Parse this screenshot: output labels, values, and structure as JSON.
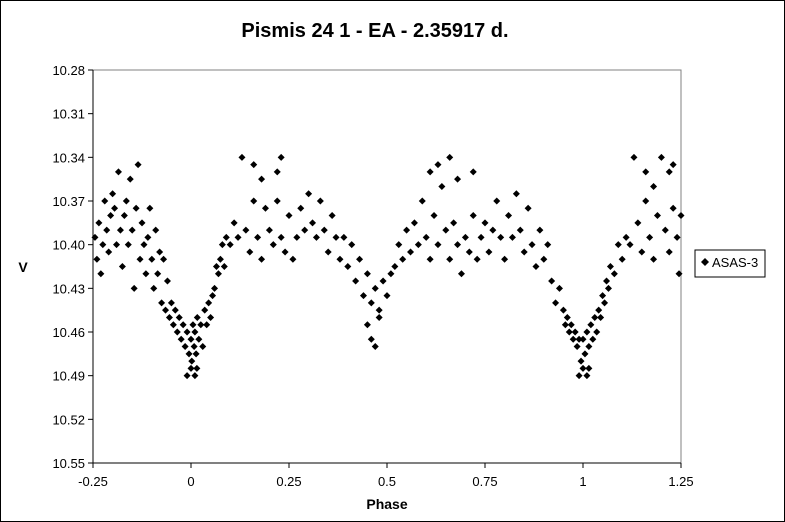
{
  "chart_data": {
    "type": "scatter",
    "title": "Pismis 24 1 - EA - 2.35917 d.",
    "xlabel": "Phase",
    "ylabel": "V",
    "xlim": [
      -0.25,
      1.25
    ],
    "ylim": [
      10.28,
      10.55
    ],
    "y_inverted": true,
    "x_ticks": [
      -0.25,
      0,
      0.25,
      0.5,
      0.75,
      1,
      1.25
    ],
    "x_tick_labels": [
      "-0.25",
      "0",
      "0.25",
      "0.5",
      "0.75",
      "1",
      "1.25"
    ],
    "y_ticks": [
      10.28,
      10.31,
      10.34,
      10.37,
      10.4,
      10.43,
      10.46,
      10.49,
      10.52,
      10.55
    ],
    "y_tick_labels": [
      "10.28",
      "10.31",
      "10.34",
      "10.37",
      "10.40",
      "10.43",
      "10.46",
      "10.49",
      "10.52",
      "10.55"
    ],
    "grid": false,
    "legend_position": "right",
    "marker": "diamond",
    "series": [
      {
        "name": "ASAS-3",
        "color": "#000000",
        "points": [
          [
            -0.245,
            10.395
          ],
          [
            -0.24,
            10.41
          ],
          [
            -0.235,
            10.385
          ],
          [
            -0.23,
            10.42
          ],
          [
            -0.225,
            10.4
          ],
          [
            -0.22,
            10.37
          ],
          [
            -0.215,
            10.39
          ],
          [
            -0.21,
            10.405
          ],
          [
            -0.205,
            10.38
          ],
          [
            -0.2,
            10.365
          ],
          [
            -0.195,
            10.375
          ],
          [
            -0.19,
            10.4
          ],
          [
            -0.185,
            10.35
          ],
          [
            -0.18,
            10.39
          ],
          [
            -0.175,
            10.415
          ],
          [
            -0.17,
            10.38
          ],
          [
            -0.165,
            10.37
          ],
          [
            -0.16,
            10.4
          ],
          [
            -0.155,
            10.355
          ],
          [
            -0.15,
            10.39
          ],
          [
            -0.145,
            10.43
          ],
          [
            -0.14,
            10.375
          ],
          [
            -0.135,
            10.345
          ],
          [
            -0.13,
            10.41
          ],
          [
            -0.125,
            10.385
          ],
          [
            -0.12,
            10.4
          ],
          [
            -0.115,
            10.42
          ],
          [
            -0.11,
            10.395
          ],
          [
            -0.105,
            10.375
          ],
          [
            -0.1,
            10.41
          ],
          [
            -0.095,
            10.43
          ],
          [
            -0.09,
            10.39
          ],
          [
            -0.085,
            10.42
          ],
          [
            -0.08,
            10.405
          ],
          [
            -0.075,
            10.44
          ],
          [
            -0.07,
            10.41
          ],
          [
            -0.065,
            10.445
          ],
          [
            -0.06,
            10.425
          ],
          [
            -0.055,
            10.45
          ],
          [
            -0.05,
            10.44
          ],
          [
            -0.045,
            10.455
          ],
          [
            -0.04,
            10.445
          ],
          [
            -0.035,
            10.46
          ],
          [
            -0.03,
            10.45
          ],
          [
            -0.025,
            10.465
          ],
          [
            -0.02,
            10.455
          ],
          [
            -0.015,
            10.47
          ],
          [
            -0.01,
            10.46
          ],
          [
            -0.005,
            10.475
          ],
          [
            0.0,
            10.465
          ],
          [
            0.002,
            10.48
          ],
          [
            0.005,
            10.455
          ],
          [
            0.008,
            10.47
          ],
          [
            0.01,
            10.46
          ],
          [
            0.013,
            10.475
          ],
          [
            0.016,
            10.45
          ],
          [
            0.02,
            10.465
          ],
          [
            0.025,
            10.455
          ],
          [
            0.03,
            10.47
          ],
          [
            0.035,
            10.445
          ],
          [
            0.04,
            10.455
          ],
          [
            0.045,
            10.44
          ],
          [
            0.05,
            10.45
          ],
          [
            0.055,
            10.435
          ],
          [
            0.06,
            10.43
          ],
          [
            0.065,
            10.415
          ],
          [
            0.07,
            10.42
          ],
          [
            0.075,
            10.41
          ],
          [
            0.08,
            10.4
          ],
          [
            0.085,
            10.415
          ],
          [
            0.09,
            10.395
          ],
          [
            0.1,
            10.4
          ],
          [
            0.11,
            10.385
          ],
          [
            0.12,
            10.395
          ],
          [
            0.13,
            10.34
          ],
          [
            0.14,
            10.39
          ],
          [
            0.15,
            10.405
          ],
          [
            0.16,
            10.37
          ],
          [
            0.17,
            10.395
          ],
          [
            0.18,
            10.41
          ],
          [
            0.19,
            10.375
          ],
          [
            0.2,
            10.39
          ],
          [
            0.21,
            10.4
          ],
          [
            0.22,
            10.37
          ],
          [
            0.23,
            10.395
          ],
          [
            0.24,
            10.405
          ],
          [
            0.25,
            10.38
          ],
          [
            0.26,
            10.41
          ],
          [
            0.27,
            10.395
          ],
          [
            0.28,
            10.375
          ],
          [
            0.29,
            10.39
          ],
          [
            0.3,
            10.365
          ],
          [
            0.31,
            10.385
          ],
          [
            0.32,
            10.395
          ],
          [
            0.33,
            10.37
          ],
          [
            0.34,
            10.39
          ],
          [
            0.35,
            10.405
          ],
          [
            0.36,
            10.38
          ],
          [
            0.37,
            10.395
          ],
          [
            0.38,
            10.41
          ],
          [
            0.39,
            10.395
          ],
          [
            0.4,
            10.415
          ],
          [
            0.41,
            10.4
          ],
          [
            0.42,
            10.425
          ],
          [
            0.43,
            10.41
          ],
          [
            0.44,
            10.435
          ],
          [
            0.45,
            10.42
          ],
          [
            0.46,
            10.44
          ],
          [
            0.47,
            10.43
          ],
          [
            0.48,
            10.445
          ],
          [
            0.49,
            10.425
          ],
          [
            0.5,
            10.435
          ],
          [
            0.51,
            10.42
          ],
          [
            0.52,
            10.415
          ],
          [
            0.53,
            10.4
          ],
          [
            0.54,
            10.41
          ],
          [
            0.55,
            10.39
          ],
          [
            0.56,
            10.405
          ],
          [
            0.57,
            10.385
          ],
          [
            0.58,
            10.4
          ],
          [
            0.59,
            10.37
          ],
          [
            0.6,
            10.395
          ],
          [
            0.61,
            10.41
          ],
          [
            0.62,
            10.38
          ],
          [
            0.63,
            10.4
          ],
          [
            0.64,
            10.36
          ],
          [
            0.65,
            10.39
          ],
          [
            0.66,
            10.41
          ],
          [
            0.67,
            10.385
          ],
          [
            0.68,
            10.4
          ],
          [
            0.69,
            10.42
          ],
          [
            0.7,
            10.395
          ],
          [
            0.71,
            10.405
          ],
          [
            0.72,
            10.38
          ],
          [
            0.73,
            10.41
          ],
          [
            0.74,
            10.395
          ],
          [
            0.75,
            10.385
          ],
          [
            0.76,
            10.405
          ],
          [
            0.77,
            10.39
          ],
          [
            0.78,
            10.37
          ],
          [
            0.79,
            10.395
          ],
          [
            0.8,
            10.41
          ],
          [
            0.81,
            10.38
          ],
          [
            0.82,
            10.395
          ],
          [
            0.83,
            10.365
          ],
          [
            0.84,
            10.39
          ],
          [
            0.85,
            10.405
          ],
          [
            0.86,
            10.375
          ],
          [
            0.87,
            10.4
          ],
          [
            0.88,
            10.415
          ],
          [
            0.89,
            10.39
          ],
          [
            0.9,
            10.41
          ],
          [
            0.91,
            10.4
          ],
          [
            0.92,
            10.425
          ],
          [
            0.93,
            10.44
          ],
          [
            0.94,
            10.43
          ],
          [
            0.95,
            10.445
          ],
          [
            0.955,
            10.455
          ],
          [
            0.96,
            10.45
          ],
          [
            0.965,
            10.46
          ],
          [
            0.97,
            10.455
          ],
          [
            0.975,
            10.465
          ],
          [
            0.98,
            10.46
          ],
          [
            0.985,
            10.47
          ],
          [
            0.99,
            10.465
          ],
          [
            0.995,
            10.48
          ],
          [
            1.0,
            10.465
          ],
          [
            1.005,
            10.475
          ],
          [
            1.01,
            10.46
          ],
          [
            1.015,
            10.47
          ],
          [
            1.02,
            10.455
          ],
          [
            1.025,
            10.465
          ],
          [
            1.03,
            10.45
          ],
          [
            1.035,
            10.46
          ],
          [
            1.04,
            10.445
          ],
          [
            1.045,
            10.45
          ],
          [
            1.05,
            10.435
          ],
          [
            1.055,
            10.44
          ],
          [
            1.06,
            10.425
          ],
          [
            1.065,
            10.43
          ],
          [
            1.07,
            10.415
          ],
          [
            1.08,
            10.42
          ],
          [
            1.09,
            10.4
          ],
          [
            1.1,
            10.41
          ],
          [
            1.11,
            10.395
          ],
          [
            1.12,
            10.4
          ],
          [
            1.13,
            10.34
          ],
          [
            1.14,
            10.385
          ],
          [
            1.15,
            10.405
          ],
          [
            1.16,
            10.37
          ],
          [
            1.17,
            10.395
          ],
          [
            1.18,
            10.41
          ],
          [
            1.19,
            10.38
          ],
          [
            1.2,
            10.34
          ],
          [
            1.21,
            10.39
          ],
          [
            1.22,
            10.405
          ],
          [
            1.23,
            10.375
          ],
          [
            1.24,
            10.395
          ],
          [
            1.245,
            10.42
          ],
          [
            1.25,
            10.38
          ],
          [
            -0.01,
            10.49
          ],
          [
            0.0,
            10.485
          ],
          [
            0.01,
            10.49
          ],
          [
            0.015,
            10.485
          ],
          [
            0.99,
            10.49
          ],
          [
            1.0,
            10.485
          ],
          [
            1.01,
            10.49
          ],
          [
            1.015,
            10.485
          ],
          [
            0.46,
            10.465
          ],
          [
            0.47,
            10.47
          ],
          [
            0.45,
            10.455
          ],
          [
            0.48,
            10.45
          ],
          [
            0.16,
            10.345
          ],
          [
            0.18,
            10.355
          ],
          [
            0.22,
            10.35
          ],
          [
            0.23,
            10.34
          ],
          [
            0.61,
            10.35
          ],
          [
            0.63,
            10.345
          ],
          [
            0.66,
            10.34
          ],
          [
            0.68,
            10.355
          ],
          [
            0.72,
            10.35
          ],
          [
            1.16,
            10.35
          ],
          [
            1.18,
            10.36
          ],
          [
            1.22,
            10.35
          ],
          [
            1.23,
            10.345
          ]
        ]
      }
    ]
  }
}
